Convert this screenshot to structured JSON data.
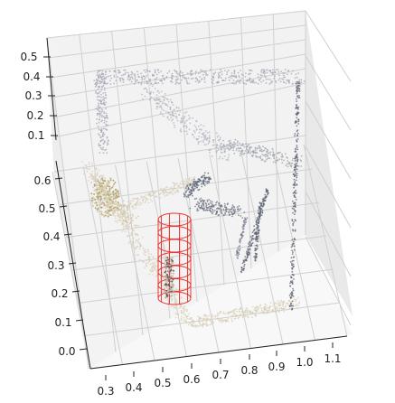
{
  "chart_data": {
    "type": "scatter",
    "dimensions": 3,
    "title": "",
    "xlabel": "",
    "ylabel": "",
    "zlabel": "",
    "grid": true,
    "x_ticks": [
      "0.3",
      "0.4",
      "0.5",
      "0.6",
      "0.7",
      "0.8",
      "0.9",
      "1.0",
      "1.1"
    ],
    "y_ticks": [
      "0.0",
      "0.1",
      "0.2",
      "0.3",
      "0.4",
      "0.5",
      "0.6"
    ],
    "z_ticks": [
      "0.1",
      "0.2",
      "0.3",
      "0.4",
      "0.5"
    ],
    "xlim": [
      0.27,
      1.13
    ],
    "ylim": [
      -0.05,
      0.68
    ],
    "zlim": [
      0.05,
      0.53
    ],
    "series": [
      {
        "color": "#d7ceb7",
        "description_points": "floor plane"
      },
      {
        "color": "#a4a6b4",
        "description_points": "back wall"
      },
      {
        "color": "#596070",
        "description_points": "poles"
      },
      {
        "color": "#e53935",
        "description_points": "cylinder wireframe"
      }
    ],
    "pane_color": "#f2f2f2",
    "grid_color": "#d0d0d0"
  }
}
